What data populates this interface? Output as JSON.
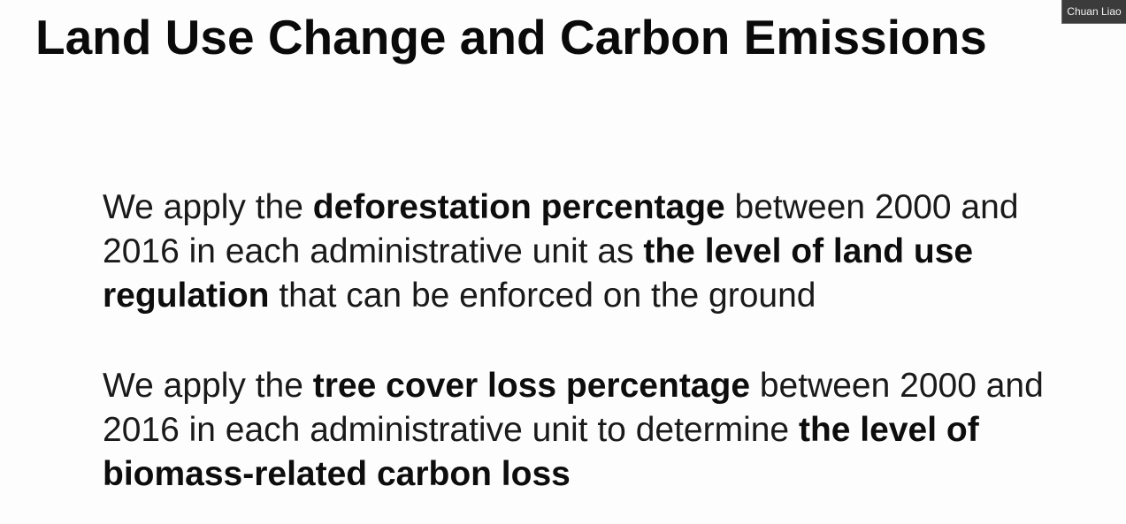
{
  "slide": {
    "title": "Land Use Change and Carbon Emissions",
    "paragraph1": {
      "t1": "We apply the ",
      "b1": "deforestation percentage",
      "t2": " between 2000 and 2016 in each administrative unit as ",
      "b2": "the level of land use regulation",
      "t3": " that can be enforced on the ground"
    },
    "paragraph2": {
      "t1": "We apply the ",
      "b1": "tree cover loss percentage",
      "t2": " between 2000 and 2016 in each administrative unit to determine ",
      "b2": "the level of biomass-related carbon loss"
    }
  },
  "participant": {
    "name": "Chuan Liao"
  },
  "colors": {
    "background": "#fdfdfd",
    "text": "#111111",
    "badge_bg": "#3b3b3b",
    "badge_text": "#f2f2f2"
  }
}
